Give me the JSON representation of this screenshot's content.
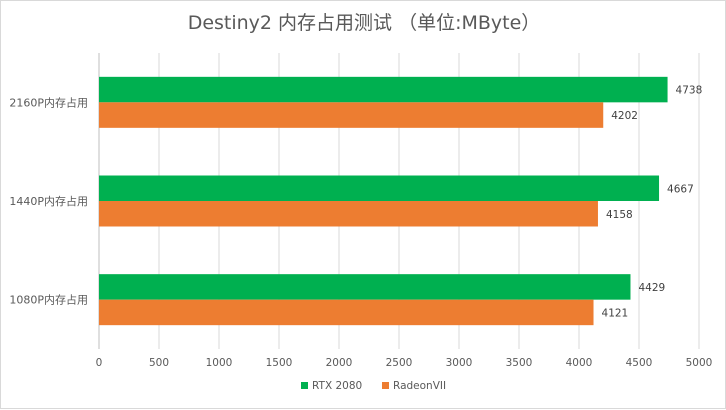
{
  "chart_data": {
    "type": "bar",
    "orientation": "horizontal",
    "title": "Destiny2 内存占用测试 （单位:MByte）",
    "categories": [
      "2160P内存占用",
      "1440P内存占用",
      "1080P内存占用"
    ],
    "series": [
      {
        "name": "RTX 2080",
        "color": "#00b050",
        "values": [
          4738,
          4667,
          4429
        ]
      },
      {
        "name": "RadeonVII",
        "color": "#ed7d31",
        "values": [
          4202,
          4158,
          4121
        ]
      }
    ],
    "xlim": [
      0,
      5000
    ],
    "xticks": [
      "0",
      "500",
      "1000",
      "1500",
      "2000",
      "2500",
      "3000",
      "3500",
      "4000",
      "4500",
      "5000"
    ],
    "grid": true,
    "legend": "bottom"
  }
}
